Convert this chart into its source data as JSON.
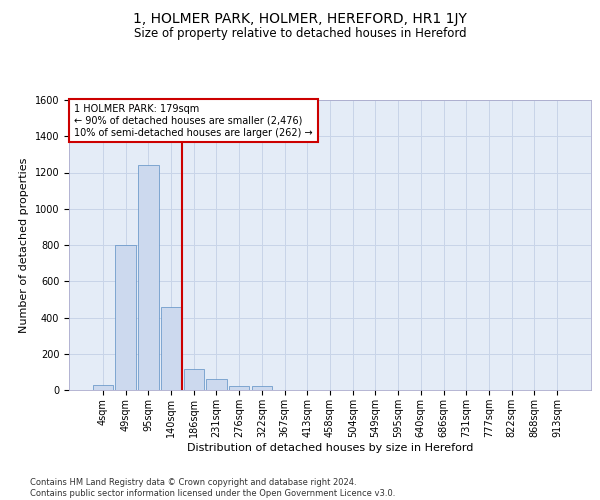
{
  "title": "1, HOLMER PARK, HOLMER, HEREFORD, HR1 1JY",
  "subtitle": "Size of property relative to detached houses in Hereford",
  "xlabel": "Distribution of detached houses by size in Hereford",
  "ylabel": "Number of detached properties",
  "bar_labels": [
    "4sqm",
    "49sqm",
    "95sqm",
    "140sqm",
    "186sqm",
    "231sqm",
    "276sqm",
    "322sqm",
    "367sqm",
    "413sqm",
    "458sqm",
    "504sqm",
    "549sqm",
    "595sqm",
    "640sqm",
    "686sqm",
    "731sqm",
    "777sqm",
    "822sqm",
    "868sqm",
    "913sqm"
  ],
  "bar_values": [
    25,
    800,
    1240,
    460,
    115,
    60,
    20,
    20,
    0,
    0,
    0,
    0,
    0,
    0,
    0,
    0,
    0,
    0,
    0,
    0,
    0
  ],
  "bar_color": "#ccd9ee",
  "bar_edge_color": "#5b8ec4",
  "vline_x": 3.5,
  "vline_color": "#cc0000",
  "annotation_text": "1 HOLMER PARK: 179sqm\n← 90% of detached houses are smaller (2,476)\n10% of semi-detached houses are larger (262) →",
  "annotation_box_color": "#ffffff",
  "annotation_box_edge": "#cc0000",
  "ylim": [
    0,
    1600
  ],
  "yticks": [
    0,
    200,
    400,
    600,
    800,
    1000,
    1200,
    1400,
    1600
  ],
  "grid_color": "#c8d4e8",
  "background_color": "#e4ecf7",
  "footer_text": "Contains HM Land Registry data © Crown copyright and database right 2024.\nContains public sector information licensed under the Open Government Licence v3.0.",
  "title_fontsize": 10,
  "subtitle_fontsize": 8.5,
  "xlabel_fontsize": 8,
  "ylabel_fontsize": 8,
  "tick_fontsize": 7,
  "annotation_fontsize": 7,
  "footer_fontsize": 6
}
